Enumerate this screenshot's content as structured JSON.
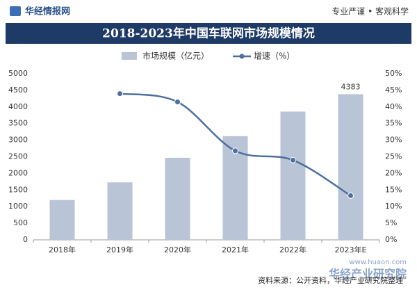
{
  "header": {
    "logo": "华经情报网",
    "slogan": "专业严谨 • 客观科学"
  },
  "chart_data": {
    "type": "bar",
    "title": "2018-2023年中国车联网市场规模情况",
    "categories": [
      "2018年",
      "2019年",
      "2020年",
      "2021年",
      "2022年",
      "2023年E"
    ],
    "series": [
      {
        "name": "市场规模（亿元）",
        "color": "#b9c4d6",
        "values": [
          1200,
          1730,
          2470,
          3120,
          3860,
          4383
        ]
      },
      {
        "name": "增速（%）",
        "color": "#4d6f9e",
        "type": "line",
        "axis": "y2",
        "values": [
          null,
          44,
          41.5,
          26.8,
          24,
          13.3
        ]
      }
    ],
    "ylim": [
      0,
      5000
    ],
    "yticks": [
      0,
      500,
      1000,
      1500,
      2000,
      2500,
      3000,
      3500,
      4000,
      4500,
      5000
    ],
    "y2lim": [
      0,
      50
    ],
    "y2ticks": [
      {
        "value": 0,
        "label": "0%"
      },
      {
        "value": 5,
        "label": "5%"
      },
      {
        "value": 10,
        "label": "10%"
      },
      {
        "value": 15,
        "label": "15%"
      },
      {
        "value": 20,
        "label": "20%"
      },
      {
        "value": 25,
        "label": "25%"
      },
      {
        "value": 30,
        "label": "30%"
      },
      {
        "value": 35,
        "label": "35%"
      },
      {
        "value": 40,
        "label": "40%"
      },
      {
        "value": 45,
        "label": "45%"
      },
      {
        "value": 50,
        "label": "50%"
      }
    ]
  },
  "footer": {
    "source": "资料来源：公开资料，华经产业研究院整理",
    "watermark": "华经产业研究院",
    "url": "www.huaon.com"
  }
}
